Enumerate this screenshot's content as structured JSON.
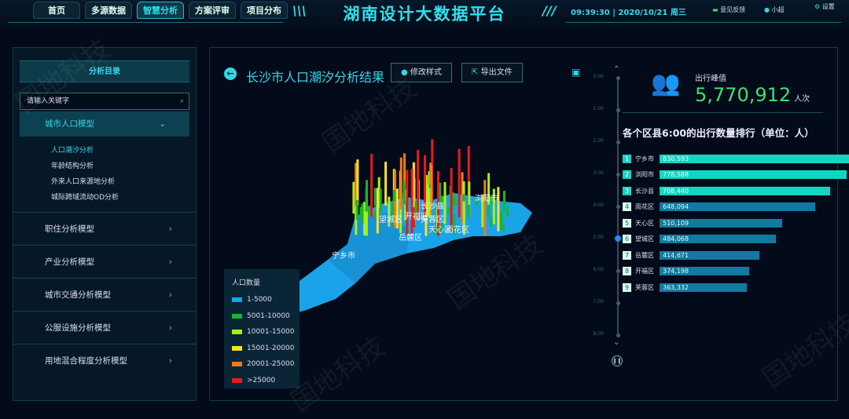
{
  "header": {
    "title": "湖南设计大数据平台",
    "time": "09:39:30",
    "date": "2020/10/21",
    "weekday": "周三",
    "nav": [
      {
        "label": "首页"
      },
      {
        "label": "多源数据"
      },
      {
        "label": "智慧分析",
        "active": true
      },
      {
        "label": "方案评审"
      },
      {
        "label": "项目分布"
      }
    ],
    "feedback": "意见反馈",
    "user": "小超",
    "settings": "设置"
  },
  "sidebar": {
    "title": "分析目录",
    "search_placeholder": "请输入关键字",
    "open_group": "城市人口模型",
    "sub_items": [
      {
        "label": "人口潮汐分析",
        "active": true
      },
      {
        "label": "年龄结构分析"
      },
      {
        "label": "外来人口来源地分析"
      },
      {
        "label": "城际跨域流动OD分析"
      }
    ],
    "groups": [
      {
        "label": "职住分析模型"
      },
      {
        "label": "产业分析模型"
      },
      {
        "label": "城市交通分析模型"
      },
      {
        "label": "公服设施分析模型"
      },
      {
        "label": "用地混合程度分析模型"
      }
    ]
  },
  "main": {
    "title": "长沙市人口潮汐分析结果",
    "style_button": "修改样式",
    "export_button": "导出文件",
    "map_labels": [
      "宁乡市",
      "望城区",
      "开福区",
      "芙蓉区",
      "长沙县",
      "浏阳市",
      "岳麓区",
      "天心区",
      "雨花区"
    ],
    "legend": {
      "title": "人口数量",
      "items": [
        {
          "label": "1-5000",
          "color": "#1aa3e8"
        },
        {
          "label": "5001-10000",
          "color": "#18b52e"
        },
        {
          "label": "10001-15000",
          "color": "#a8f01a"
        },
        {
          "label": "15001-20000",
          "color": "#f5e22a"
        },
        {
          "label": "20001-25000",
          "color": "#f07a1a"
        },
        {
          "label": ">25000",
          "color": "#e81a1a"
        }
      ]
    }
  },
  "timeline": {
    "ticks": [
      "0:00",
      "1:00",
      "2:00",
      "3:00",
      "4:00",
      "5:00",
      "6:00",
      "7:00",
      "8:00"
    ],
    "current": "5:00"
  },
  "stats": {
    "peak_label": "出行峰值",
    "peak_value": "5,770,912",
    "peak_unit": "人次",
    "ranking_title": "各个区县6:00的出行数量排行（单位：人）",
    "ranking": [
      {
        "rank": "1",
        "name": "宁乡市",
        "value": 830593,
        "display": "830,593"
      },
      {
        "rank": "2",
        "name": "浏阳市",
        "value": 778588,
        "display": "778,588"
      },
      {
        "rank": "3",
        "name": "长沙县",
        "value": 708440,
        "display": "708,440"
      },
      {
        "rank": "4",
        "name": "雨花区",
        "value": 648094,
        "display": "648,094"
      },
      {
        "rank": "5",
        "name": "天心区",
        "value": 510109,
        "display": "510,109"
      },
      {
        "rank": "6",
        "name": "望城区",
        "value": 484068,
        "display": "484,068"
      },
      {
        "rank": "7",
        "name": "岳麓区",
        "value": 414671,
        "display": "414,671"
      },
      {
        "rank": "8",
        "name": "开福区",
        "value": 374198,
        "display": "374,198"
      },
      {
        "rank": "9",
        "name": "芙蓉区",
        "value": 363332,
        "display": "363,332"
      }
    ],
    "top_color": "#12d6c4",
    "other_color": "#1479a0"
  },
  "watermark": "国地科技"
}
